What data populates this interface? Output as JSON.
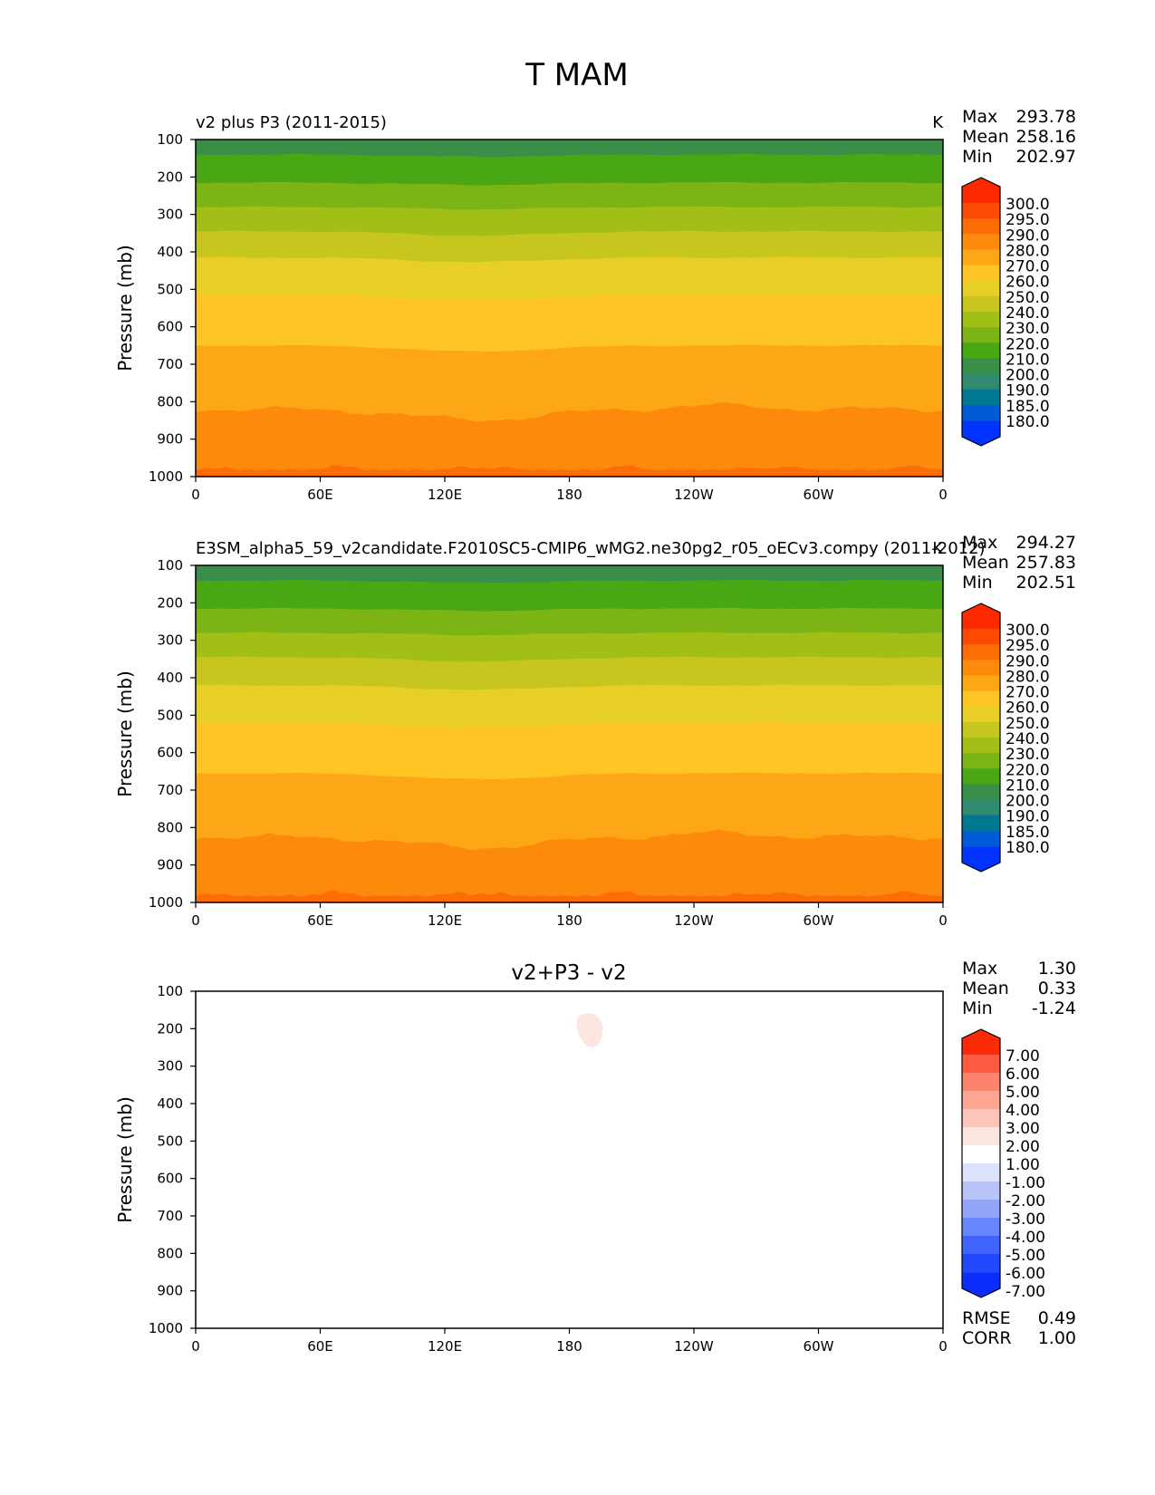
{
  "figure": {
    "title": "T MAM"
  },
  "colors": {
    "abs_fills": [
      "#0033ff",
      "#005cd6",
      "#00788f",
      "#2f8a70",
      "#3a8f48",
      "#4aa714",
      "#7bb414",
      "#a2bf17",
      "#c6c61e",
      "#e8cf27",
      "#fec524",
      "#fda716",
      "#fd8a0b",
      "#fd6c05",
      "#fd4a02",
      "#fd2a00"
    ],
    "diff_fills": [
      "#0a2cfd",
      "#2348fd",
      "#4163fd",
      "#6785fd",
      "#93a5fb",
      "#b9c4f8",
      "#dce2fb",
      "#ffffff",
      "#fde5e0",
      "#fec6b9",
      "#fea493",
      "#fd836c",
      "#fd5a3f",
      "#fd2a08"
    ]
  },
  "panels": [
    {
      "id": "test",
      "label_left": "v2 plus P3 (2011-2015)",
      "label_center": "",
      "label_right": "K",
      "stats": [
        {
          "name": "Max",
          "value": "293.78"
        },
        {
          "name": "Mean",
          "value": "258.16"
        },
        {
          "name": "Min",
          "value": "202.97"
        }
      ],
      "colorbar_labels": [
        "300.0",
        "295.0",
        "290.0",
        "280.0",
        "270.0",
        "260.0",
        "250.0",
        "240.0",
        "230.0",
        "220.0",
        "210.0",
        "200.0",
        "190.0",
        "185.0",
        "180.0"
      ],
      "footer_stats": []
    },
    {
      "id": "reference",
      "label_left": "E3SM_alpha5_59_v2candidate.F2010SC5-CMIP6_wMG2.ne30pg2_r05_oECv3.compy (2011-2012)",
      "label_center": "",
      "label_right": "K",
      "stats": [
        {
          "name": "Max",
          "value": "294.27"
        },
        {
          "name": "Mean",
          "value": "257.83"
        },
        {
          "name": "Min",
          "value": "202.51"
        }
      ],
      "colorbar_labels": [
        "300.0",
        "295.0",
        "290.0",
        "280.0",
        "270.0",
        "260.0",
        "250.0",
        "240.0",
        "230.0",
        "220.0",
        "210.0",
        "200.0",
        "190.0",
        "185.0",
        "180.0"
      ],
      "footer_stats": []
    },
    {
      "id": "difference",
      "label_left": "",
      "label_center": "v2+P3 - v2",
      "label_right": "",
      "stats": [
        {
          "name": "Max",
          "value": "1.30"
        },
        {
          "name": "Mean",
          "value": "0.33"
        },
        {
          "name": "Min",
          "value": "-1.24"
        }
      ],
      "colorbar_labels": [
        "7.00",
        "6.00",
        "5.00",
        "4.00",
        "3.00",
        "2.00",
        "1.00",
        "-1.00",
        "-2.00",
        "-3.00",
        "-4.00",
        "-5.00",
        "-6.00",
        "-7.00"
      ],
      "footer_stats": [
        {
          "name": "RMSE",
          "value": "0.49"
        },
        {
          "name": "CORR",
          "value": "1.00"
        }
      ]
    }
  ],
  "chart_data": [
    {
      "type": "heatmap",
      "title": "v2 plus P3 (2011-2015)",
      "units": "K",
      "ylabel": "Pressure (mb)",
      "xlabel": "",
      "x_ticks": [
        "0",
        "60E",
        "120E",
        "180",
        "120W",
        "60W",
        "0"
      ],
      "y_ticks": [
        "100",
        "200",
        "300",
        "400",
        "500",
        "600",
        "700",
        "800",
        "900",
        "1000"
      ],
      "ylim": [
        100,
        1000
      ],
      "xlim": [
        0,
        360
      ],
      "contour_levels": [
        180,
        185,
        190,
        200,
        210,
        220,
        230,
        240,
        250,
        260,
        270,
        280,
        290,
        295,
        300
      ],
      "level_boundaries_mb": [
        {
          "level_K": 210,
          "p_mb": 140
        },
        {
          "level_K": 220,
          "p_mb": 215
        },
        {
          "level_K": 230,
          "p_mb": 280
        },
        {
          "level_K": 240,
          "p_mb": 345
        },
        {
          "level_K": 250,
          "p_mb": 415
        },
        {
          "level_K": 260,
          "p_mb": 515
        },
        {
          "level_K": 270,
          "p_mb": 650
        },
        {
          "level_K": 280,
          "p_mb": 820
        },
        {
          "level_K": 290,
          "p_mb": 985
        }
      ],
      "max": 293.78,
      "mean": 258.16,
      "min": 202.97
    },
    {
      "type": "heatmap",
      "title": "E3SM_alpha5_59_v2candidate.F2010SC5-CMIP6_wMG2.ne30pg2_r05_oECv3.compy (2011-2012)",
      "units": "K",
      "ylabel": "Pressure (mb)",
      "xlabel": "",
      "x_ticks": [
        "0",
        "60E",
        "120E",
        "180",
        "120W",
        "60W",
        "0"
      ],
      "y_ticks": [
        "100",
        "200",
        "300",
        "400",
        "500",
        "600",
        "700",
        "800",
        "900",
        "1000"
      ],
      "ylim": [
        100,
        1000
      ],
      "xlim": [
        0,
        360
      ],
      "contour_levels": [
        180,
        185,
        190,
        200,
        210,
        220,
        230,
        240,
        250,
        260,
        270,
        280,
        290,
        295,
        300
      ],
      "level_boundaries_mb": [
        {
          "level_K": 210,
          "p_mb": 140
        },
        {
          "level_K": 220,
          "p_mb": 215
        },
        {
          "level_K": 230,
          "p_mb": 280
        },
        {
          "level_K": 240,
          "p_mb": 345
        },
        {
          "level_K": 250,
          "p_mb": 420
        },
        {
          "level_K": 260,
          "p_mb": 520
        },
        {
          "level_K": 270,
          "p_mb": 655
        },
        {
          "level_K": 280,
          "p_mb": 825
        },
        {
          "level_K": 290,
          "p_mb": 985
        }
      ],
      "max": 294.27,
      "mean": 257.83,
      "min": 202.51
    },
    {
      "type": "heatmap",
      "title": "v2+P3 - v2",
      "units": "K",
      "ylabel": "Pressure (mb)",
      "xlabel": "",
      "x_ticks": [
        "0",
        "60E",
        "120E",
        "180",
        "120W",
        "60W",
        "0"
      ],
      "y_ticks": [
        "100",
        "200",
        "300",
        "400",
        "500",
        "600",
        "700",
        "800",
        "900",
        "1000"
      ],
      "ylim": [
        100,
        1000
      ],
      "xlim": [
        0,
        360
      ],
      "contour_levels": [
        -7,
        -6,
        -5,
        -4,
        -3,
        -2,
        -1,
        1,
        2,
        3,
        4,
        5,
        6,
        7
      ],
      "features": [
        {
          "kind": "positive_blob",
          "level_range": [
            1,
            2
          ],
          "lon_center": 189,
          "p_center_mb": 225
        }
      ],
      "max": 1.3,
      "mean": 0.33,
      "min": -1.24,
      "rmse": 0.49,
      "corr": 1.0
    }
  ]
}
